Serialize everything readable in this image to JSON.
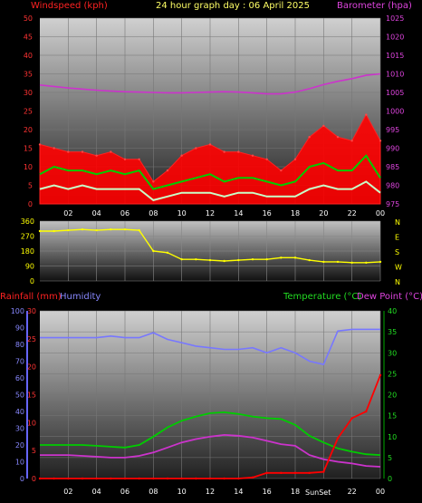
{
  "header": {
    "left_title": "Windspeed (kph)",
    "center_title": "24 hour graph day : 06 April 2025",
    "right_title": "Barometer (hpa)"
  },
  "colors": {
    "windspeed": "#ff0000",
    "gust": "#ff0000",
    "avg_wind": "#00cc00",
    "wind_min": "#c8ffc8",
    "barometer": "#cc33cc",
    "direction": "#ffff00",
    "rainfall": "#ff0000",
    "humidity": "#7777ff",
    "temperature": "#00cc00",
    "dewpoint": "#cc33cc",
    "sunset": "#ffffff"
  },
  "x_ticks": [
    "02",
    "04",
    "06",
    "08",
    "10",
    "12",
    "14",
    "16",
    "18",
    "20",
    "22",
    "00"
  ],
  "chart_data": [
    {
      "id": "wind",
      "type": "area",
      "y_left": {
        "label": "Windspeed (kph)",
        "lim": [
          0,
          50
        ],
        "ticks": [
          0,
          5,
          10,
          15,
          20,
          25,
          30,
          35,
          40,
          45,
          50
        ]
      },
      "y_right": {
        "label": "Barometer (hpa)",
        "lim": [
          975,
          1025
        ],
        "ticks": [
          975,
          980,
          985,
          990,
          995,
          1000,
          1005,
          1010,
          1015,
          1020,
          1025
        ]
      },
      "x_hours": [
        0,
        1,
        2,
        3,
        4,
        5,
        6,
        7,
        8,
        9,
        10,
        11,
        12,
        13,
        14,
        15,
        16,
        17,
        18,
        19,
        20,
        21,
        22,
        23,
        24
      ],
      "series": [
        {
          "key": "gust",
          "values": [
            16,
            15,
            14,
            14,
            13,
            14,
            12,
            12,
            6,
            9,
            13,
            15,
            16,
            14,
            14,
            13,
            12,
            9,
            12,
            18,
            21,
            18,
            17,
            24,
            17
          ]
        },
        {
          "key": "avg",
          "values": [
            8,
            10,
            9,
            9,
            8,
            9,
            8,
            9,
            4,
            5,
            6,
            7,
            8,
            6,
            7,
            7,
            6,
            5,
            6,
            10,
            11,
            9,
            9,
            13,
            7
          ]
        },
        {
          "key": "min",
          "values": [
            4,
            5,
            4,
            5,
            4,
            4,
            4,
            4,
            1,
            2,
            3,
            3,
            3,
            2,
            3,
            3,
            2,
            2,
            2,
            4,
            5,
            4,
            4,
            6,
            3
          ]
        },
        {
          "key": "barometer",
          "values": [
            1007.0,
            1006.6,
            1006.2,
            1005.9,
            1005.6,
            1005.4,
            1005.2,
            1005.1,
            1005.0,
            1004.9,
            1004.9,
            1005.0,
            1005.1,
            1005.2,
            1005.1,
            1004.9,
            1004.6,
            1004.6,
            1005.1,
            1006.0,
            1007.1,
            1008.0,
            1008.7,
            1009.6,
            1010.0
          ]
        }
      ]
    },
    {
      "id": "direction",
      "type": "line",
      "y_left": {
        "lim": [
          0,
          360
        ],
        "ticks": [
          0,
          90,
          180,
          270,
          360
        ]
      },
      "y_right": {
        "ticks": [
          "N",
          "W",
          "S",
          "E",
          "N"
        ]
      },
      "x_hours": [
        0,
        1,
        2,
        3,
        4,
        5,
        6,
        7,
        8,
        9,
        10,
        11,
        12,
        13,
        14,
        15,
        16,
        17,
        18,
        19,
        20,
        21,
        22,
        23,
        24
      ],
      "series": [
        {
          "key": "direction",
          "values": [
            300,
            300,
            305,
            310,
            305,
            310,
            310,
            305,
            180,
            170,
            130,
            130,
            125,
            120,
            125,
            130,
            130,
            140,
            140,
            125,
            115,
            115,
            110,
            110,
            115
          ]
        }
      ]
    },
    {
      "id": "rain_temp",
      "type": "line",
      "y_left_rain": {
        "label": "Rainfall (mm)",
        "lim": [
          0,
          30
        ],
        "ticks": [
          0,
          5,
          10,
          15,
          20,
          25,
          30
        ]
      },
      "y_left_humidity": {
        "label": "Humidity",
        "lim": [
          0,
          100
        ],
        "ticks": [
          0,
          10,
          20,
          30,
          40,
          50,
          60,
          70,
          80,
          90,
          100
        ]
      },
      "y_right": {
        "label": "Temperature (°C)",
        "label2": "Dew Point (°C)",
        "lim": [
          0,
          40
        ],
        "ticks": [
          0,
          5,
          10,
          15,
          20,
          25,
          30,
          35,
          40
        ]
      },
      "sunset_label": "SunSet",
      "x_hours": [
        0,
        1,
        2,
        3,
        4,
        5,
        6,
        7,
        8,
        9,
        10,
        11,
        12,
        13,
        14,
        15,
        16,
        17,
        18,
        19,
        20,
        21,
        22,
        23,
        24
      ],
      "series": [
        {
          "key": "humidity",
          "values": [
            84,
            84,
            84,
            84,
            84,
            85,
            84,
            84,
            87,
            83,
            81,
            79,
            78,
            77,
            77,
            78,
            75,
            78,
            75,
            70,
            68,
            88,
            89,
            89,
            89
          ]
        },
        {
          "key": "temperature",
          "values": [
            8.0,
            8.0,
            8.0,
            8.0,
            7.8,
            7.6,
            7.4,
            8.0,
            10.0,
            12.2,
            13.8,
            14.8,
            15.6,
            15.8,
            15.4,
            14.8,
            14.4,
            14.2,
            12.8,
            10.2,
            8.6,
            7.2,
            6.4,
            5.8,
            5.6
          ]
        },
        {
          "key": "dewpoint",
          "values": [
            5.6,
            5.6,
            5.6,
            5.4,
            5.2,
            5.0,
            5.0,
            5.4,
            6.2,
            7.4,
            8.6,
            9.4,
            10.0,
            10.4,
            10.2,
            9.8,
            9.0,
            8.2,
            7.8,
            5.6,
            4.6,
            4.0,
            3.6,
            3.0,
            2.8
          ]
        },
        {
          "key": "rainfall",
          "values": [
            0,
            0,
            0,
            0,
            0,
            0,
            0,
            0,
            0,
            0,
            0,
            0,
            0,
            0,
            0,
            0.2,
            1.0,
            1.0,
            1.0,
            1.0,
            1.2,
            7.2,
            10.8,
            12.0,
            18.5
          ]
        }
      ]
    }
  ]
}
